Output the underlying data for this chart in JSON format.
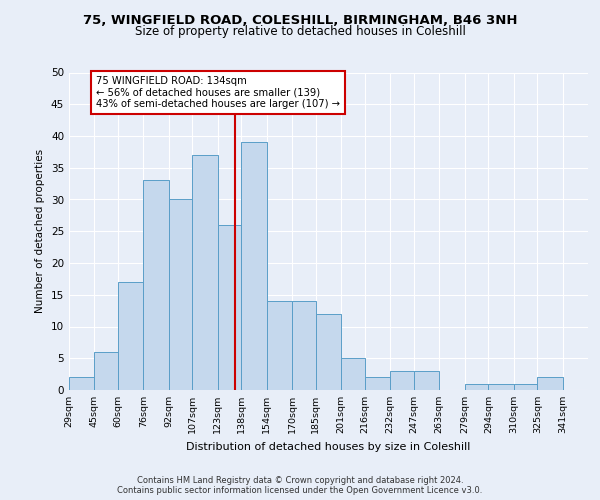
{
  "title_line1": "75, WINGFIELD ROAD, COLESHILL, BIRMINGHAM, B46 3NH",
  "title_line2": "Size of property relative to detached houses in Coleshill",
  "xlabel": "Distribution of detached houses by size in Coleshill",
  "ylabel": "Number of detached properties",
  "footer_line1": "Contains HM Land Registry data © Crown copyright and database right 2024.",
  "footer_line2": "Contains public sector information licensed under the Open Government Licence v3.0.",
  "bin_labels": [
    "29sqm",
    "45sqm",
    "60sqm",
    "76sqm",
    "92sqm",
    "107sqm",
    "123sqm",
    "138sqm",
    "154sqm",
    "170sqm",
    "185sqm",
    "201sqm",
    "216sqm",
    "232sqm",
    "247sqm",
    "263sqm",
    "279sqm",
    "294sqm",
    "310sqm",
    "325sqm",
    "341sqm"
  ],
  "bar_values": [
    2,
    6,
    17,
    33,
    30,
    37,
    26,
    39,
    14,
    14,
    12,
    5,
    2,
    3,
    3,
    0,
    1,
    1,
    1,
    2,
    0
  ],
  "bar_color": "#c5d8ed",
  "bar_edge_color": "#5a9ec8",
  "property_line_x": 134,
  "annotation_text_line1": "75 WINGFIELD ROAD: 134sqm",
  "annotation_text_line2": "← 56% of detached houses are smaller (139)",
  "annotation_text_line3": "43% of semi-detached houses are larger (107) →",
  "annotation_box_color": "#ffffff",
  "annotation_box_edge_color": "#cc0000",
  "vline_color": "#cc0000",
  "ylim": [
    0,
    50
  ],
  "yticks": [
    0,
    5,
    10,
    15,
    20,
    25,
    30,
    35,
    40,
    45,
    50
  ],
  "background_color": "#e8eef8",
  "axes_background": "#e8eef8",
  "grid_color": "#ffffff",
  "bin_edges": [
    29,
    45,
    60,
    76,
    92,
    107,
    123,
    138,
    154,
    170,
    185,
    201,
    216,
    232,
    247,
    263,
    279,
    294,
    310,
    325,
    341,
    357
  ]
}
